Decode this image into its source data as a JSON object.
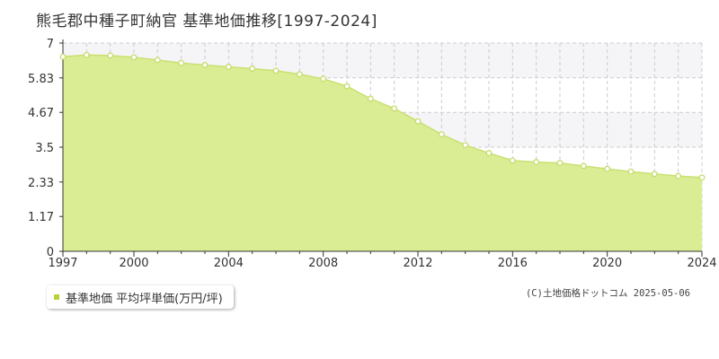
{
  "colors": {
    "fill": "#dbed94",
    "line": "#c9e070",
    "marker_stroke": "#c5dc6a",
    "marker_fill": "#ffffff",
    "legend_marker": "#b5d43c",
    "grid": "#cccccc",
    "band": "#f5f5f8",
    "axis": "#333333"
  },
  "chart_data": {
    "type": "area",
    "title": "熊毛郡中種子町納官 基準地価推移[1997-2024]",
    "xlabel": "",
    "ylabel": "",
    "xlim": [
      1997,
      2024
    ],
    "ylim": [
      0,
      7
    ],
    "x_ticks": [
      1997,
      2000,
      2004,
      2008,
      2012,
      2016,
      2020,
      2024
    ],
    "y_ticks": [
      0,
      1.17,
      2.33,
      3.5,
      4.67,
      5.83,
      7
    ],
    "y_tick_labels": [
      "0",
      "1.17",
      "2.33",
      "3.5",
      "4.67",
      "5.83",
      "7"
    ],
    "grid": true,
    "legend_position": "bottom-left",
    "series": [
      {
        "name": "基準地価 平均坪単価(万円/坪)",
        "x": [
          1997,
          1998,
          1999,
          2000,
          2001,
          2002,
          2003,
          2004,
          2005,
          2006,
          2007,
          2008,
          2009,
          2010,
          2011,
          2012,
          2013,
          2014,
          2015,
          2016,
          2017,
          2018,
          2019,
          2020,
          2021,
          2022,
          2023,
          2024
        ],
        "y": [
          6.54,
          6.6,
          6.58,
          6.52,
          6.43,
          6.33,
          6.26,
          6.2,
          6.14,
          6.07,
          5.95,
          5.8,
          5.55,
          5.13,
          4.8,
          4.37,
          3.93,
          3.57,
          3.3,
          3.05,
          3.0,
          2.97,
          2.87,
          2.77,
          2.68,
          2.6,
          2.53,
          2.48
        ]
      }
    ]
  },
  "legend": {
    "label": "基準地価 平均坪単価(万円/坪)"
  },
  "credit": "(C)土地価格ドットコム 2025-05-06"
}
